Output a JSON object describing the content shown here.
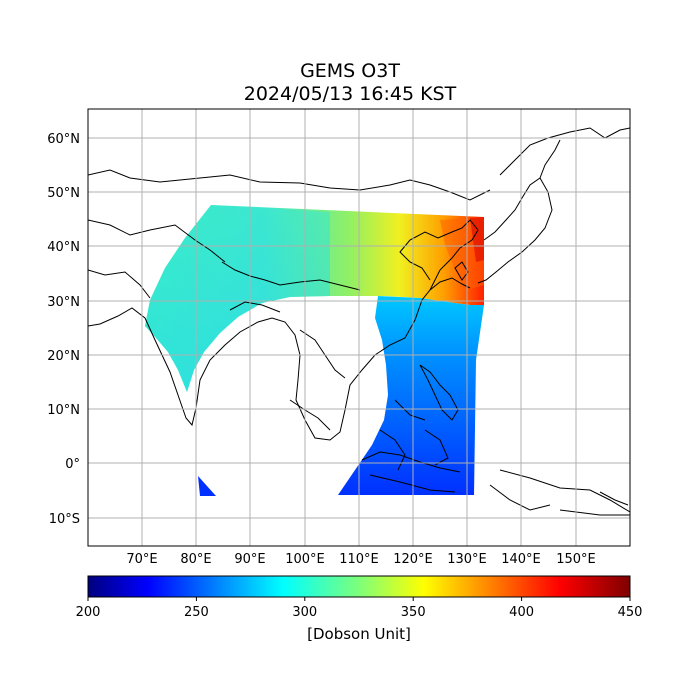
{
  "title": {
    "line1": "GEMS O3T",
    "line2": "2024/05/13 16:45 KST"
  },
  "map": {
    "extent_lon": [
      60,
      160
    ],
    "extent_lat": [
      -15,
      65
    ],
    "lon_ticks": [
      "70°E",
      "80°E",
      "90°E",
      "100°E",
      "110°E",
      "120°E",
      "130°E",
      "140°E",
      "150°E"
    ],
    "lat_ticks": [
      "60°N",
      "50°N",
      "40°N",
      "30°N",
      "20°N",
      "10°N",
      "0°",
      "10°S"
    ],
    "grid": true
  },
  "colorbar": {
    "min": 200,
    "max": 450,
    "ticks": [
      "200",
      "250",
      "300",
      "350",
      "400",
      "450"
    ],
    "label": "[Dobson Unit]",
    "colormap": "jet"
  },
  "colors": {
    "low": "#00007f",
    "blue": "#0000ff",
    "cyan": "#00ffff",
    "yellow": "#ffff00",
    "red": "#ff0000",
    "high": "#7f0000"
  }
}
